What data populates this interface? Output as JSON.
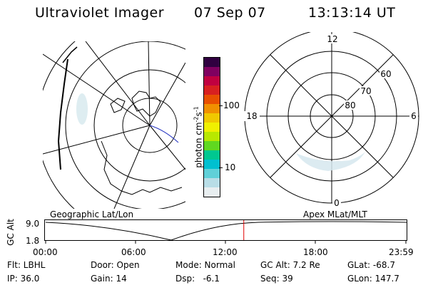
{
  "header": {
    "instrument": "Ultraviolet Imager",
    "date": "07 Sep 07",
    "time": "13:13:14 UT"
  },
  "colorbar": {
    "unit_label": "photon cm",
    "unit_exp1": "-2",
    "unit_mid": "s",
    "unit_exp2": "-1",
    "ticks": [
      "100",
      "10"
    ],
    "colors": [
      "#e8eef0",
      "#b8dde6",
      "#60d0d8",
      "#00c0d0",
      "#00c890",
      "#60d820",
      "#b8e800",
      "#f0f000",
      "#f0c800",
      "#f09000",
      "#e85000",
      "#d82020",
      "#c00040",
      "#800060",
      "#300040"
    ]
  },
  "polar_panel": {
    "clock_labels": {
      "top": "12",
      "left": "18",
      "right": "6",
      "bottom": "0"
    },
    "lat_labels": [
      "80",
      "70",
      "60"
    ]
  },
  "map_panel": {
    "label": "Geographic Lat/Lon"
  },
  "apex_panel": {
    "label": "Apex MLat/MLT"
  },
  "timeline": {
    "axis_label": "GC Alt",
    "y_ticks": [
      "9.0",
      "1.8"
    ],
    "x_ticks": [
      "00:00",
      "06:00",
      "12:00",
      "18:00",
      "23:59"
    ],
    "current_time_fraction": 0.55,
    "marker_color": "#e00000"
  },
  "info": {
    "flt": "Flt: LBHL",
    "door": "Door: Open",
    "mode": "Mode: Normal",
    "gc_alt": "GC Alt: 7.2 Re",
    "glat": "GLat: -68.7",
    "ip": "IP: 36.0",
    "gain": "Gain: 14",
    "dsp": "Dsp:   -6.1",
    "seq": "Seq: 39",
    "glon": "GLon: 147.7"
  }
}
